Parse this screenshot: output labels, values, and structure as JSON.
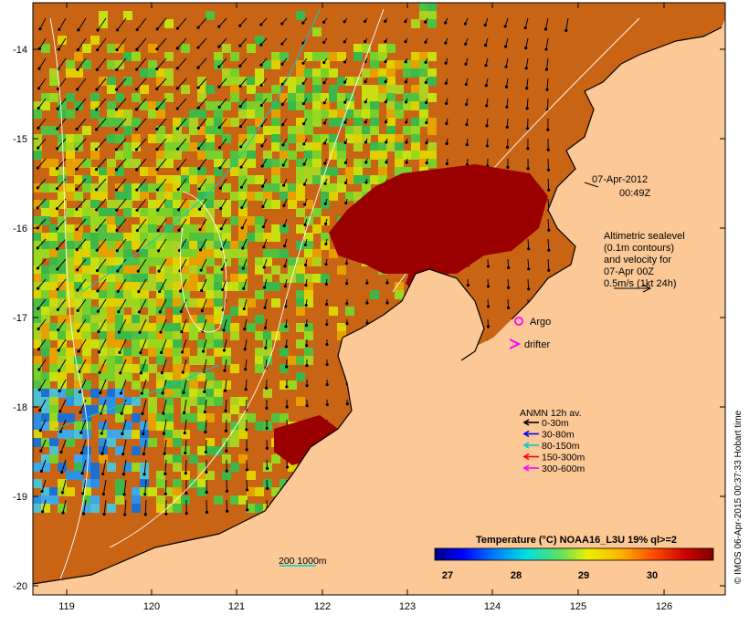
{
  "map": {
    "y_axis_labels": [
      "-14",
      "-15",
      "-16",
      "-17",
      "-18",
      "-19",
      "-20"
    ],
    "x_axis_labels": [
      "119",
      "120",
      "121",
      "122",
      "123",
      "124",
      "125",
      "126"
    ],
    "date_label": "07-Apr-2012",
    "time_label": "00:49Z",
    "altimetry_lines": [
      "Altimetric sealevel",
      "(0.1m contours)",
      "and velocity for",
      "07-Apr 00Z",
      "0.5m/s (1kt 24h)"
    ],
    "argo_label": "Argo",
    "drifter_label": "drifter",
    "anmn_title": "ANMN 12h av.",
    "depth_legend": [
      {
        "label": "0-30m",
        "color": "#000000"
      },
      {
        "label": "30-80m",
        "color": "#0000ff"
      },
      {
        "label": "80-150m",
        "color": "#00cccc"
      },
      {
        "label": "150-300m",
        "color": "#ff0000"
      },
      {
        "label": "300-600m",
        "color": "#ff00ff"
      }
    ],
    "bathymetry_label": "200  1000m",
    "colorbar_title": "Temperature (°C) NOAA16_L3U 19% ql>=2",
    "colorbar_ticks": [
      "27",
      "28",
      "29",
      "30"
    ],
    "credit": "© IMOS 06-Apr-2015 00:37:33 Hobart time",
    "colors": {
      "land": "#fbc896",
      "warm_sea": "#c86414",
      "hot_sea": "#9a0000",
      "cool_sea": "#7ad02a",
      "cold_sea": "#2f8fe0"
    }
  }
}
